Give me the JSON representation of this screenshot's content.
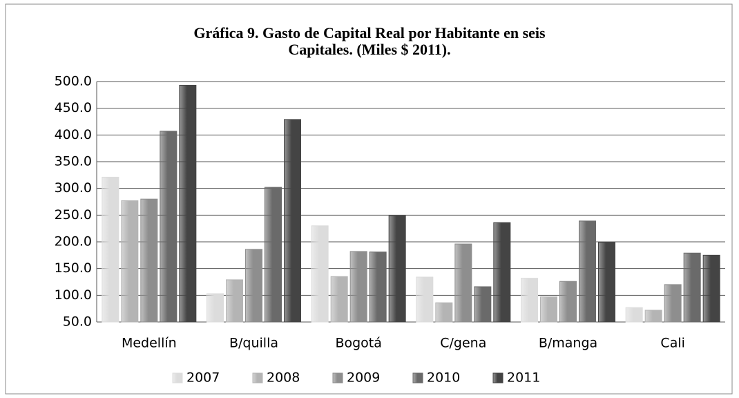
{
  "chart_data": {
    "type": "bar",
    "title": "Gráfica 9. Gasto de Capital Real por Habitante en seis\nCapitales.  (Miles $ 2011).",
    "categories": [
      "Medellín",
      "B/quilla",
      "Bogotá",
      "C/gena",
      "B/manga",
      "Cali"
    ],
    "series": [
      {
        "name": "2007",
        "color": "#dcdcdc",
        "values": [
          321,
          103,
          230,
          134,
          132,
          77
        ]
      },
      {
        "name": "2008",
        "color": "#b4b4b4",
        "values": [
          277,
          129,
          135,
          86,
          97,
          72
        ]
      },
      {
        "name": "2009",
        "color": "#8e8e8e",
        "values": [
          280,
          186,
          182,
          196,
          126,
          120
        ]
      },
      {
        "name": "2010",
        "color": "#6a6a6a",
        "values": [
          407,
          302,
          181,
          116,
          239,
          179
        ]
      },
      {
        "name": "2011",
        "color": "#444444",
        "values": [
          493,
          429,
          249,
          236,
          199,
          175
        ]
      }
    ],
    "ylim": [
      50,
      500
    ],
    "yticks": [
      {
        "value": 50,
        "label": "50.0"
      },
      {
        "value": 100,
        "label": "100.0"
      },
      {
        "value": 150,
        "label": "150.0"
      },
      {
        "value": 200,
        "label": "200.0"
      },
      {
        "value": 250,
        "label": "250.0"
      },
      {
        "value": 300,
        "label": "300.0"
      },
      {
        "value": 350,
        "label": "350.0"
      },
      {
        "value": 400,
        "label": "400.0"
      },
      {
        "value": 450,
        "label": "450.0"
      },
      {
        "value": 500,
        "label": "500.0"
      }
    ],
    "grid": true,
    "legend": "bottom"
  }
}
